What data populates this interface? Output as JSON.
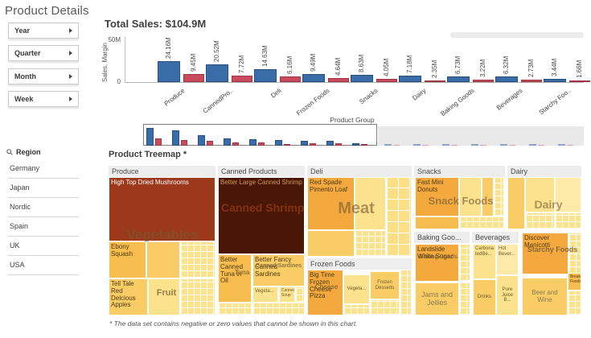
{
  "page_title": "Product Details",
  "filter_buttons": [
    {
      "label": "Year"
    },
    {
      "label": "Quarter"
    },
    {
      "label": "Month"
    },
    {
      "label": "Week"
    }
  ],
  "region_filter": {
    "title": "Region",
    "items": [
      "Germany",
      "Japan",
      "Nordic",
      "Spain",
      "UK",
      "USA"
    ]
  },
  "chart_data": [
    {
      "type": "bar",
      "title": "Total Sales: $104.9M",
      "ylabel": "Sales, Margin",
      "xlabel": "Product Group",
      "ylim": [
        0,
        50
      ],
      "ytick_labels": {
        "max": "50M",
        "min": "0"
      },
      "unit": "M",
      "categories": [
        "Produce",
        "CannedPro..",
        "Deli",
        "Frozen Foods",
        "Snacks",
        "Dairy",
        "Baking Goods",
        "Beverages",
        "Starchy Foo.."
      ],
      "series": [
        {
          "name": "Sales",
          "color": "#3a6ca8",
          "border": "#27507f",
          "values": [
            24.16,
            20.52,
            14.63,
            9.49,
            8.63,
            7.18,
            6.73,
            6.32,
            3.44
          ]
        },
        {
          "name": "Margin",
          "color": "#c94b5d",
          "border": "#9c3647",
          "values": [
            9.45,
            7.72,
            6.16,
            4.64,
            4.05,
            2.35,
            3.22,
            2.73,
            1.66
          ]
        }
      ],
      "navigator": {
        "out_of_view_sales": [
          1.6,
          1.4,
          1.2,
          1.0,
          0.9,
          0.8,
          0.7
        ],
        "out_of_view_margin": [
          0.7,
          0.6,
          0.5,
          0.45,
          0.4,
          0.35,
          0.3
        ]
      }
    },
    {
      "type": "treemap",
      "title": "Product Treemap *",
      "footnote": "* The data set contains negative or zero values that cannot be shown in this chart.",
      "palette": {
        "pale": "#fbe28c",
        "pale2": "#fdeaa8",
        "amber": "#f9cc66",
        "amberDark": "#f7bd4e",
        "orange": "#f3a93e",
        "brick": "#9c391b",
        "darkbrown": "#4a1605"
      },
      "sections": [
        {
          "label": "Produce",
          "x": 0,
          "y": 0,
          "w": 133,
          "h": 186
        },
        {
          "label": "Canned Products",
          "x": 136,
          "y": 0,
          "w": 108,
          "h": 186
        },
        {
          "label": "Deli",
          "x": 247,
          "y": 0,
          "w": 130,
          "h": 112
        },
        {
          "label": "Frozen Foods",
          "x": 247,
          "y": 115,
          "w": 130,
          "h": 71
        },
        {
          "label": "Snacks",
          "x": 380,
          "y": 0,
          "w": 113,
          "h": 79
        },
        {
          "label": "Dairy",
          "x": 496,
          "y": 0,
          "w": 92,
          "h": 79
        },
        {
          "label": "Baking Goo...",
          "x": 380,
          "y": 82,
          "w": 69,
          "h": 104
        },
        {
          "label": "Beverages",
          "x": 452,
          "y": 82,
          "w": 58,
          "h": 104
        },
        {
          "label": "",
          "x": 513,
          "y": 82,
          "w": 75,
          "h": 104
        }
      ],
      "cells": [
        {
          "x": 1,
          "y": 15,
          "w": 131,
          "h": 78,
          "c": "brick",
          "label": "High Top Dried Mushrooms",
          "tc": "#ffffff",
          "fs": 8
        },
        {
          "x": 1,
          "y": 95,
          "w": 45,
          "h": 44,
          "c": "amberDark",
          "label": "Ebony Squash",
          "fs": 8
        },
        {
          "x": 48,
          "y": 95,
          "w": 40,
          "h": 44,
          "c": "amber"
        },
        {
          "x": 90,
          "y": 95,
          "w": 42,
          "h": 44,
          "p": "fine"
        },
        {
          "x": 1,
          "y": 141,
          "w": 47,
          "h": 44,
          "c": "amber",
          "label": "Tell Tale Red Delcious Apples",
          "fs": 8
        },
        {
          "x": 50,
          "y": 141,
          "w": 38,
          "h": 44,
          "c": "pale"
        },
        {
          "x": 90,
          "y": 141,
          "w": 42,
          "h": 44,
          "p": "fine"
        },
        {
          "x": 137,
          "y": 15,
          "w": 106,
          "h": 94,
          "c": "darkbrown",
          "label": "Better Large Canned Shrimp",
          "tc": "#d29a55",
          "fs": 8
        },
        {
          "x": 137,
          "y": 111,
          "w": 40,
          "h": 58,
          "c": "amberDark",
          "label": "Better Canned Tuna in Oil",
          "fs": 8
        },
        {
          "x": 180,
          "y": 111,
          "w": 63,
          "h": 38,
          "c": "amber",
          "label": "Better Fancy Canned Sardines",
          "fs": 8
        },
        {
          "x": 180,
          "y": 151,
          "w": 30,
          "h": 18,
          "c": "pale",
          "label": "Vegeta...",
          "tc": "#6b5a2a",
          "fs": 6
        },
        {
          "x": 213,
          "y": 151,
          "w": 18,
          "h": 18,
          "c": "pale",
          "label": "Canned Soup",
          "tc": "#6b5a2a",
          "fs": 5
        },
        {
          "x": 233,
          "y": 151,
          "w": 10,
          "h": 18,
          "p": "fine"
        },
        {
          "x": 137,
          "y": 171,
          "w": 40,
          "h": 14,
          "p": "fine"
        },
        {
          "x": 180,
          "y": 171,
          "w": 63,
          "h": 14,
          "p": "fine"
        },
        {
          "x": 248,
          "y": 15,
          "w": 57,
          "h": 64,
          "c": "orange",
          "label": "Red Spade Pimento Loaf",
          "fs": 8
        },
        {
          "x": 307,
          "y": 15,
          "w": 37,
          "h": 64,
          "c": "pale"
        },
        {
          "x": 346,
          "y": 15,
          "w": 30,
          "h": 97,
          "p": "med"
        },
        {
          "x": 248,
          "y": 81,
          "w": 57,
          "h": 31,
          "c": "amber"
        },
        {
          "x": 307,
          "y": 81,
          "w": 37,
          "h": 31,
          "p": "fine"
        },
        {
          "x": 248,
          "y": 130,
          "w": 43,
          "h": 55,
          "c": "orange",
          "label": "Big Time Frozen Cheese Pizza",
          "fs": 8
        },
        {
          "x": 293,
          "y": 136,
          "w": 31,
          "h": 35,
          "c": "pale",
          "label": "Vegeta...",
          "tc": "#6b5a2a",
          "fs": 6,
          "align": "center"
        },
        {
          "x": 293,
          "y": 173,
          "w": 31,
          "h": 12,
          "p": "fine"
        },
        {
          "x": 326,
          "y": 132,
          "w": 35,
          "h": 33,
          "c": "amber",
          "label": "Frozen Desserts",
          "tc": "#6b5a2a",
          "fs": 6,
          "align": "center"
        },
        {
          "x": 326,
          "y": 167,
          "w": 35,
          "h": 18,
          "p": "fine"
        },
        {
          "x": 363,
          "y": 130,
          "w": 13,
          "h": 55,
          "p": "fine"
        },
        {
          "x": 382,
          "y": 15,
          "w": 53,
          "h": 47,
          "c": "orange",
          "label": "Fast Mini Donuts",
          "fs": 8
        },
        {
          "x": 437,
          "y": 15,
          "w": 26,
          "h": 47,
          "c": "pale"
        },
        {
          "x": 465,
          "y": 15,
          "w": 13,
          "h": 47,
          "c": "amber"
        },
        {
          "x": 480,
          "y": 15,
          "w": 11,
          "h": 47,
          "p": "fine"
        },
        {
          "x": 382,
          "y": 64,
          "w": 53,
          "h": 14,
          "c": "amberDark"
        },
        {
          "x": 437,
          "y": 64,
          "w": 54,
          "h": 14,
          "p": "fine"
        },
        {
          "x": 497,
          "y": 15,
          "w": 20,
          "h": 63,
          "c": "amber"
        },
        {
          "x": 519,
          "y": 15,
          "w": 35,
          "h": 42,
          "c": "pale"
        },
        {
          "x": 556,
          "y": 15,
          "w": 31,
          "h": 42,
          "c": "pale2"
        },
        {
          "x": 519,
          "y": 59,
          "w": 35,
          "h": 19,
          "p": "fine"
        },
        {
          "x": 556,
          "y": 59,
          "w": 31,
          "h": 19,
          "p": "fine"
        },
        {
          "x": 382,
          "y": 98,
          "w": 53,
          "h": 45,
          "c": "orange",
          "label": "Landslide White Sugar",
          "fs": 8
        },
        {
          "x": 437,
          "y": 98,
          "w": 12,
          "h": 45,
          "p": "fine"
        },
        {
          "x": 382,
          "y": 146,
          "w": 53,
          "h": 39,
          "c": "amber",
          "label": "Jams and Jellies",
          "tc": "#8d7a4e",
          "fs": 9,
          "align": "center"
        },
        {
          "x": 437,
          "y": 146,
          "w": 12,
          "h": 39,
          "p": "fine"
        },
        {
          "x": 454,
          "y": 98,
          "w": 27,
          "h": 42,
          "c": "pale",
          "label": "Carbona tedBe...",
          "tc": "#6b5a2a",
          "fs": 6
        },
        {
          "x": 483,
          "y": 98,
          "w": 26,
          "h": 37,
          "c": "pale2",
          "label": "Hot Bever...",
          "tc": "#6b5a2a",
          "fs": 6
        },
        {
          "x": 483,
          "y": 137,
          "w": 26,
          "h": 48,
          "c": "pale",
          "label": "Pure Juice B...",
          "tc": "#6b5a2a",
          "fs": 6,
          "align": "center"
        },
        {
          "x": 454,
          "y": 142,
          "w": 27,
          "h": 43,
          "c": "amber",
          "label": "Drinks",
          "tc": "#6b5a2a",
          "fs": 6,
          "align": "center"
        },
        {
          "x": 515,
          "y": 84,
          "w": 56,
          "h": 50,
          "c": "orange",
          "label": "Discover Manicotti",
          "fs": 8
        },
        {
          "x": 573,
          "y": 84,
          "w": 14,
          "h": 50,
          "p": "fine"
        },
        {
          "x": 515,
          "y": 140,
          "w": 55,
          "h": 45,
          "c": "amber",
          "label": "Beer and Wine",
          "tc": "#8d7a4e",
          "fs": 8,
          "align": "center"
        },
        {
          "x": 572,
          "y": 134,
          "w": 15,
          "h": 20,
          "c": "amberDark",
          "label": "Breakfast Foods",
          "tc": "#4f3a12",
          "fs": 5
        },
        {
          "x": 572,
          "y": 156,
          "w": 15,
          "h": 29,
          "p": "fine"
        }
      ],
      "overlays": [
        {
          "text": "Vegetables",
          "x": 6,
          "y": 76,
          "w": 122,
          "fs": 17,
          "color": "rgba(118,92,50,0.6)"
        },
        {
          "text": "Canned Shrimp",
          "x": 140,
          "y": 44,
          "w": 100,
          "fs": 14,
          "color": "rgba(148,62,20,0.75)"
        },
        {
          "text": "Tuna",
          "x": 146,
          "y": 128,
          "w": 40,
          "fs": 8,
          "color": "rgba(118,92,50,0.8)"
        },
        {
          "text": "Canned Sardines",
          "x": 181,
          "y": 121,
          "w": 61,
          "fs": 7,
          "color": "rgba(118,92,50,0.8)"
        },
        {
          "text": "Fruit",
          "x": 44,
          "y": 152,
          "w": 56,
          "fs": 11,
          "color": "rgba(118,92,50,0.75)"
        },
        {
          "text": "Meat",
          "x": 266,
          "y": 42,
          "w": 84,
          "fs": 20,
          "color": "rgba(118,92,50,0.6)"
        },
        {
          "text": "Cheese",
          "x": 249,
          "y": 146,
          "w": 44,
          "fs": 8,
          "color": "rgba(118,92,50,0.8)"
        },
        {
          "text": "Snack Foods",
          "x": 386,
          "y": 36,
          "w": 104,
          "fs": 13,
          "color": "rgba(118,92,50,0.65)"
        },
        {
          "text": "Dairy",
          "x": 512,
          "y": 40,
          "w": 70,
          "fs": 14,
          "color": "rgba(118,92,50,0.6)"
        },
        {
          "text": "Baking Goods",
          "x": 383,
          "y": 110,
          "w": 54,
          "fs": 7,
          "color": "rgba(118,92,50,0.8)"
        },
        {
          "text": "Starchy Foods",
          "x": 517,
          "y": 99,
          "w": 70,
          "fs": 9,
          "color": "rgba(118,92,50,0.85)"
        }
      ]
    }
  ]
}
